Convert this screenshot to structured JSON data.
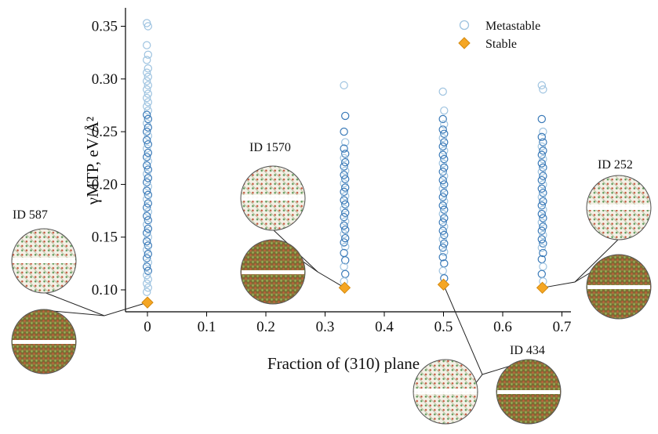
{
  "chart_data": {
    "type": "scatter",
    "title": "",
    "xlabel": "Fraction of (310) plane",
    "ylabel": "γMTP, eV/Å²",
    "xlim": [
      -0.04,
      0.7
    ],
    "ylim": [
      0.085,
      0.36
    ],
    "x_ticks": [
      "0",
      "0.1",
      "0.2",
      "0.3",
      "0.4",
      "0.5",
      "0.6",
      "0.7"
    ],
    "y_ticks": [
      "0.10",
      "0.15",
      "0.20",
      "0.25",
      "0.30",
      "0.35"
    ],
    "legend": {
      "placement": "top-right"
    },
    "series": [
      {
        "name": "Metastable",
        "marker": "open-circle",
        "color": "#4a8cc4",
        "points": [
          {
            "x": 0,
            "y_values": [
              0.353,
              0.35,
              0.332,
              0.323,
              0.318,
              0.31,
              0.306,
              0.302,
              0.298,
              0.294,
              0.29,
              0.286,
              0.282,
              0.278,
              0.274,
              0.27,
              0.266,
              0.262,
              0.258,
              0.254,
              0.25,
              0.246,
              0.242,
              0.238,
              0.234,
              0.23,
              0.226,
              0.222,
              0.218,
              0.214,
              0.21,
              0.206,
              0.202,
              0.198,
              0.194,
              0.19,
              0.186,
              0.182,
              0.178,
              0.174,
              0.17,
              0.166,
              0.162,
              0.158,
              0.154,
              0.15,
              0.146,
              0.142,
              0.138,
              0.134,
              0.13,
              0.126,
              0.122,
              0.118,
              0.114,
              0.11,
              0.106,
              0.102,
              0.098
            ]
          },
          {
            "x": 0.333,
            "y_values": [
              0.294,
              0.265,
              0.25,
              0.24,
              0.234,
              0.229,
              0.225,
              0.221,
              0.217,
              0.213,
              0.209,
              0.205,
              0.201,
              0.197,
              0.193,
              0.189,
              0.185,
              0.181,
              0.177,
              0.173,
              0.169,
              0.165,
              0.161,
              0.157,
              0.153,
              0.149,
              0.145,
              0.141,
              0.135,
              0.128,
              0.122,
              0.115,
              0.108
            ]
          },
          {
            "x": 0.5,
            "y_values": [
              0.288,
              0.27,
              0.262,
              0.257,
              0.252,
              0.248,
              0.244,
              0.24,
              0.236,
              0.232,
              0.228,
              0.224,
              0.22,
              0.216,
              0.212,
              0.208,
              0.204,
              0.2,
              0.196,
              0.192,
              0.188,
              0.184,
              0.18,
              0.176,
              0.172,
              0.168,
              0.164,
              0.16,
              0.156,
              0.152,
              0.148,
              0.144,
              0.14,
              0.136,
              0.131,
              0.125,
              0.118,
              0.111
            ]
          },
          {
            "x": 0.667,
            "y_values": [
              0.294,
              0.29,
              0.262,
              0.25,
              0.245,
              0.24,
              0.236,
              0.232,
              0.228,
              0.224,
              0.22,
              0.216,
              0.212,
              0.208,
              0.204,
              0.2,
              0.196,
              0.192,
              0.188,
              0.184,
              0.18,
              0.176,
              0.172,
              0.168,
              0.164,
              0.16,
              0.156,
              0.152,
              0.148,
              0.144,
              0.14,
              0.135,
              0.129,
              0.122,
              0.115,
              0.108
            ]
          }
        ]
      },
      {
        "name": "Stable",
        "marker": "diamond",
        "color": "#f5a623",
        "points": [
          {
            "x": 0,
            "y": 0.088
          },
          {
            "x": 0.333,
            "y": 0.102
          },
          {
            "x": 0.5,
            "y": 0.105
          },
          {
            "x": 0.667,
            "y": 0.102
          }
        ]
      }
    ],
    "annotations": [
      {
        "label": "ID 587",
        "x": 0,
        "y": 0.088
      },
      {
        "label": "ID 1570",
        "x": 0.333,
        "y": 0.102
      },
      {
        "label": "ID 434",
        "x": 0.5,
        "y": 0.105
      },
      {
        "label": "ID 252",
        "x": 0.667,
        "y": 0.102
      }
    ]
  }
}
